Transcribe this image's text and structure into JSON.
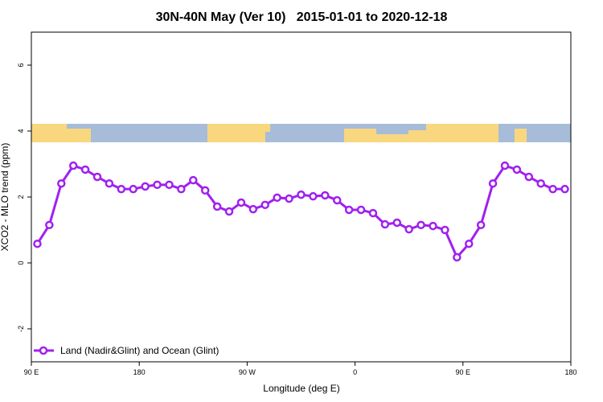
{
  "chart_data": {
    "type": "line",
    "title": "30N-40N May (Ver 10)   2015-01-01 to 2020-12-18",
    "x_label": "Longitude (deg E)",
    "y_label": "XCO2 - MLO trend (ppm)",
    "x": [
      95,
      105,
      115,
      125,
      135,
      145,
      155,
      165,
      175,
      185,
      195,
      205,
      215,
      225,
      235,
      245,
      255,
      265,
      275,
      285,
      295,
      305,
      315,
      325,
      335,
      345,
      355,
      365,
      375,
      385,
      395,
      405,
      415,
      425,
      435,
      445,
      455,
      465,
      475,
      485,
      495,
      505,
      515,
      525,
      535
    ],
    "series": [
      {
        "name": "Land (Nadir&Glint) and Ocean (Glint)",
        "color": "#a020f0",
        "values": [
          0.58,
          1.15,
          2.41,
          2.95,
          2.83,
          2.61,
          2.41,
          2.24,
          2.24,
          2.32,
          2.37,
          2.37,
          2.24,
          2.51,
          2.2,
          1.71,
          1.56,
          1.83,
          1.63,
          1.76,
          1.98,
          1.95,
          2.07,
          2.02,
          2.05,
          1.9,
          1.61,
          1.61,
          1.51,
          1.17,
          1.22,
          1.02,
          1.15,
          1.12,
          1.0,
          0.17,
          0.58,
          1.15,
          2.41,
          2.95,
          2.83,
          2.61,
          2.41,
          2.24,
          2.24
        ]
      }
    ],
    "xlim": [
      90,
      540
    ],
    "xticks": [
      {
        "value": 90,
        "label": "90 E"
      },
      {
        "value": 180,
        "label": "180"
      },
      {
        "value": 270,
        "label": "90 W"
      },
      {
        "value": 360,
        "label": "0"
      },
      {
        "value": 450,
        "label": "90 E"
      },
      {
        "value": 540,
        "label": "180"
      }
    ],
    "ylim": [
      -3,
      7
    ],
    "yticks": [
      -2,
      0,
      2,
      4,
      6
    ],
    "legend": "bottom-left"
  }
}
